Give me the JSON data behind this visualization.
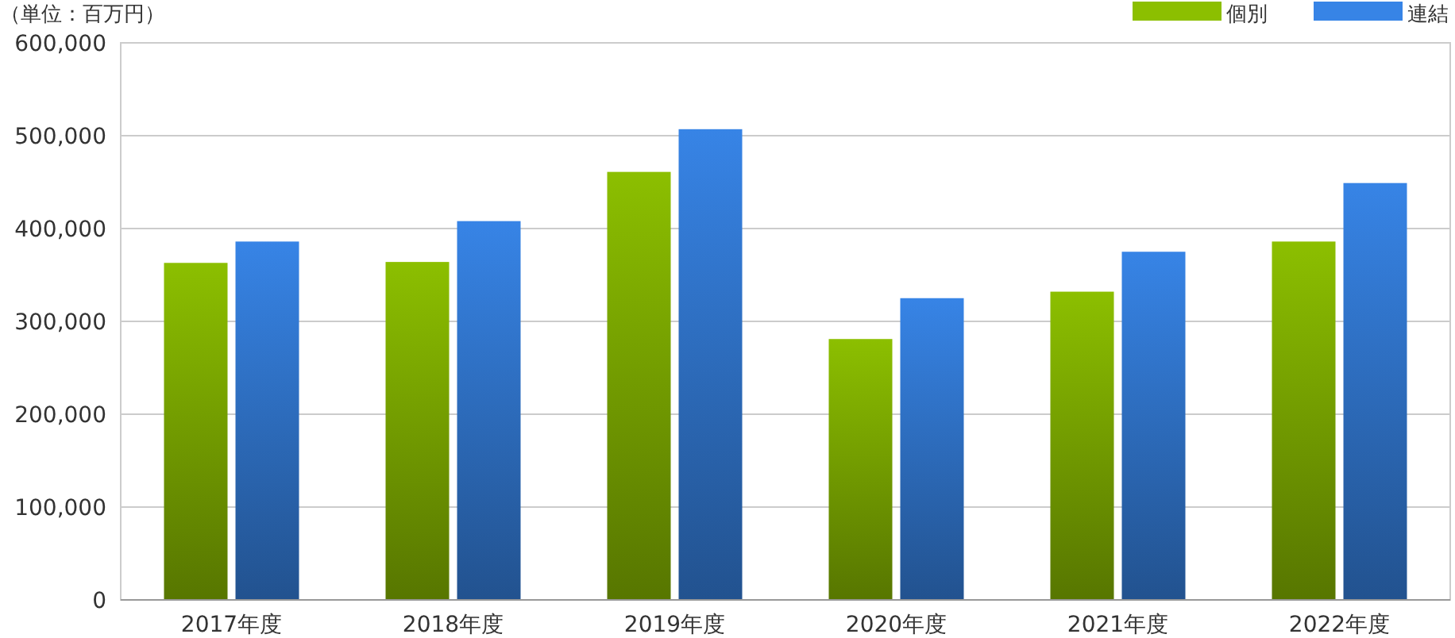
{
  "chart_data": {
    "type": "bar",
    "ylabel": "（単位：百万円）",
    "categories": [
      "2017年度",
      "2018年度",
      "2019年度",
      "2020年度",
      "2021年度",
      "2022年度"
    ],
    "series": [
      {
        "name": "個別",
        "color": "#8cbf00",
        "values": [
          363000,
          364000,
          461000,
          281000,
          332000,
          386000
        ]
      },
      {
        "name": "連結",
        "color": "#3784e6",
        "values": [
          386000,
          408000,
          507000,
          325000,
          375000,
          449000
        ]
      }
    ],
    "ylim": [
      0,
      600000
    ],
    "yticks": [
      {
        "value": 0,
        "label": "0"
      },
      {
        "value": 100000,
        "label": "100,000"
      },
      {
        "value": 200000,
        "label": "200,000"
      },
      {
        "value": 300000,
        "label": "300,000"
      },
      {
        "value": 400000,
        "label": "400,000"
      },
      {
        "value": 500000,
        "label": "500,000"
      },
      {
        "value": 600000,
        "label": "600,000"
      }
    ],
    "grid": "y",
    "legend": "top right"
  }
}
